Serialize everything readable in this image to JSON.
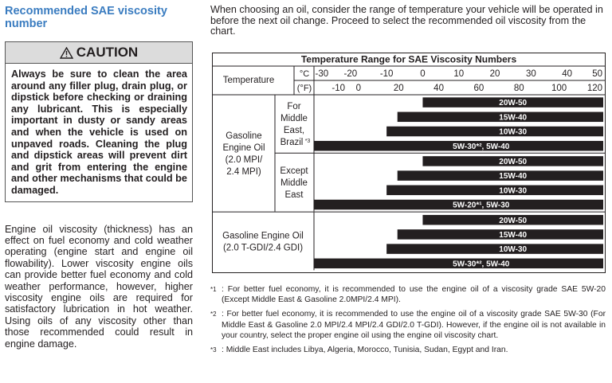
{
  "left": {
    "title": "Recommended SAE viscosity number",
    "caution_label": "CAUTION",
    "caution_text": "Always be sure to clean the area around any filler plug, drain plug, or dipstick before checking or draining any lubricant. This is especially important in dusty or sandy areas and when the vehicle is used on unpaved roads. Cleaning the plug and dipstick areas will prevent dirt and grit from entering the engine and other mechanisms that could be damaged.",
    "paragraph": "Engine oil viscosity (thickness) has an effect on fuel economy and cold weather operating (engine start and engine oil flowability). Lower viscosity engine oils can provide better fuel economy and cold weather performance, however, higher viscosity engine oils are required for satisfactory lubrication in hot weather. Using oils of any viscosity other than those recommended could result in engine damage."
  },
  "right": {
    "intro": "When choosing an oil, consider the range of temperature your vehicle will be operated in before the next oil change. Proceed to select the recommended oil viscosity from the chart."
  },
  "chart_data": {
    "type": "table",
    "title": "Temperature Range for SAE Viscosity Numbers",
    "temperature_label": "Temperature",
    "celsius_unit": "°C",
    "fahrenheit_unit": "(°F)",
    "celsius_ticks": [
      "-30",
      "-20",
      "-10",
      "0",
      "10",
      "20",
      "30",
      "40",
      "50"
    ],
    "fahrenheit_ticks": [
      "-10",
      "0",
      "20",
      "40",
      "60",
      "80",
      "100",
      "120"
    ],
    "celsius_range": [
      -30,
      50
    ],
    "groups": [
      {
        "engine_label": [
          "Gasoline",
          "Engine Oil",
          "(2.0 MPI/",
          "2.4 MPI)"
        ],
        "subgroups": [
          {
            "region_label": [
              "For",
              "Middle",
              "East,",
              "Brazil"
            ],
            "region_mark": "*3",
            "bars": [
              {
                "grade": "20W-50",
                "from_c": 0,
                "to_c": 50
              },
              {
                "grade": "15W-40",
                "from_c": -7,
                "to_c": 50
              },
              {
                "grade": "10W-30",
                "from_c": -10,
                "to_c": 50
              },
              {
                "grade": "5W-30*², 5W-40",
                "from_c": -30,
                "to_c": 50
              }
            ]
          },
          {
            "region_label": [
              "Except",
              "Middle",
              "East"
            ],
            "bars": [
              {
                "grade": "20W-50",
                "from_c": 0,
                "to_c": 50
              },
              {
                "grade": "15W-40",
                "from_c": -7,
                "to_c": 50
              },
              {
                "grade": "10W-30",
                "from_c": -10,
                "to_c": 50
              },
              {
                "grade": "5W-20*¹, 5W-30",
                "from_c": -30,
                "to_c": 50
              }
            ]
          }
        ]
      },
      {
        "engine_label": [
          "Gasoline Engine Oil",
          "(2.0 T-GDI/2.4 GDI)"
        ],
        "subgroups": [
          {
            "region_label": [],
            "bars": [
              {
                "grade": "20W-50",
                "from_c": 0,
                "to_c": 50
              },
              {
                "grade": "15W-40",
                "from_c": -7,
                "to_c": 50
              },
              {
                "grade": "10W-30",
                "from_c": -10,
                "to_c": 50
              },
              {
                "grade": "5W-30*², 5W-40",
                "from_c": -30,
                "to_c": 50
              }
            ]
          }
        ]
      }
    ]
  },
  "footnotes": [
    {
      "mark": "*1",
      "text": ": For better fuel economy, it is recommended to use the engine oil of a viscosity grade SAE 5W-20 (Except Middle East & Gasoline 2.0MPI/2.4 MPI)."
    },
    {
      "mark": "*2",
      "text": ": For better fuel economy, it is recommended to use the engine oil of a viscosity grade SAE 5W-30 (For Middle East & Gasoline 2.0 MPI/2.4 MPI/2.4 GDI/2.0 T-GDI). However, if the engine oil is not available in your country, select the proper engine oil using the engine oil viscosity chart."
    },
    {
      "mark": "*3",
      "text": ": Middle East includes Libya, Algeria, Morocco, Tunisia, Sudan, Egypt and Iran."
    }
  ]
}
